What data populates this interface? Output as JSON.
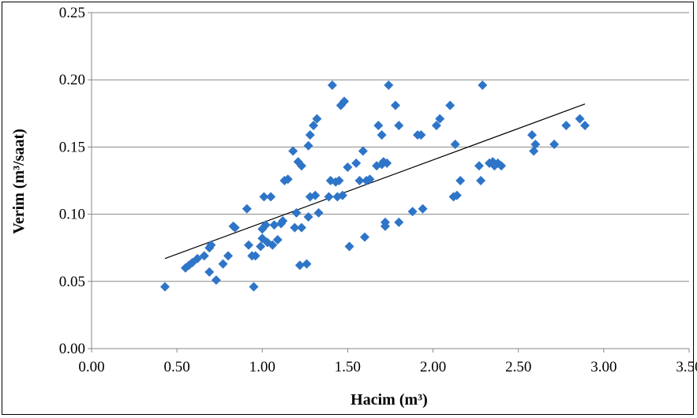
{
  "chart_data": {
    "type": "scatter",
    "title": "",
    "xlabel": "Hacim (m³)",
    "ylabel": "Verim (m³/saat)",
    "xlim": [
      0.0,
      3.5
    ],
    "ylim": [
      0.0,
      0.25
    ],
    "x_ticks": [
      "0.00",
      "0.50",
      "1.00",
      "1.50",
      "2.00",
      "2.50",
      "3.00",
      "3.50"
    ],
    "y_ticks": [
      "0.00",
      "0.05",
      "0.10",
      "0.15",
      "0.20",
      "0.25"
    ],
    "x_tick_values": [
      0,
      0.5,
      1.0,
      1.5,
      2.0,
      2.5,
      3.0,
      3.5
    ],
    "y_tick_values": [
      0,
      0.05,
      0.1,
      0.15,
      0.2,
      0.25
    ],
    "grid": "horizontal",
    "marker_color": "#2E75C8",
    "trendline": {
      "x": [
        0.43,
        2.89
      ],
      "y": [
        0.067,
        0.182
      ],
      "color": "#000000"
    },
    "points": [
      [
        0.43,
        0.046
      ],
      [
        0.55,
        0.06
      ],
      [
        0.57,
        0.062
      ],
      [
        0.59,
        0.064
      ],
      [
        0.62,
        0.067
      ],
      [
        0.66,
        0.069
      ],
      [
        0.69,
        0.075
      ],
      [
        0.7,
        0.077
      ],
      [
        0.69,
        0.057
      ],
      [
        0.73,
        0.051
      ],
      [
        0.77,
        0.063
      ],
      [
        0.8,
        0.069
      ],
      [
        0.83,
        0.091
      ],
      [
        0.84,
        0.09
      ],
      [
        0.91,
        0.104
      ],
      [
        0.92,
        0.077
      ],
      [
        0.94,
        0.069
      ],
      [
        0.95,
        0.046
      ],
      [
        0.96,
        0.069
      ],
      [
        0.99,
        0.076
      ],
      [
        1.0,
        0.082
      ],
      [
        1.0,
        0.089
      ],
      [
        1.01,
        0.113
      ],
      [
        1.02,
        0.092
      ],
      [
        1.03,
        0.079
      ],
      [
        1.05,
        0.113
      ],
      [
        1.06,
        0.077
      ],
      [
        1.07,
        0.092
      ],
      [
        1.09,
        0.081
      ],
      [
        1.11,
        0.093
      ],
      [
        1.12,
        0.095
      ],
      [
        1.13,
        0.125
      ],
      [
        1.15,
        0.126
      ],
      [
        1.18,
        0.147
      ],
      [
        1.19,
        0.09
      ],
      [
        1.2,
        0.101
      ],
      [
        1.21,
        0.139
      ],
      [
        1.22,
        0.062
      ],
      [
        1.23,
        0.09
      ],
      [
        1.23,
        0.136
      ],
      [
        1.26,
        0.063
      ],
      [
        1.27,
        0.151
      ],
      [
        1.27,
        0.098
      ],
      [
        1.28,
        0.113
      ],
      [
        1.28,
        0.159
      ],
      [
        1.3,
        0.166
      ],
      [
        1.31,
        0.114
      ],
      [
        1.32,
        0.171
      ],
      [
        1.33,
        0.101
      ],
      [
        1.39,
        0.113
      ],
      [
        1.4,
        0.125
      ],
      [
        1.41,
        0.196
      ],
      [
        1.43,
        0.124
      ],
      [
        1.44,
        0.113
      ],
      [
        1.45,
        0.125
      ],
      [
        1.46,
        0.181
      ],
      [
        1.47,
        0.114
      ],
      [
        1.48,
        0.184
      ],
      [
        1.5,
        0.135
      ],
      [
        1.51,
        0.076
      ],
      [
        1.55,
        0.138
      ],
      [
        1.57,
        0.125
      ],
      [
        1.59,
        0.147
      ],
      [
        1.6,
        0.083
      ],
      [
        1.61,
        0.125
      ],
      [
        1.63,
        0.126
      ],
      [
        1.67,
        0.136
      ],
      [
        1.68,
        0.166
      ],
      [
        1.7,
        0.159
      ],
      [
        1.7,
        0.137
      ],
      [
        1.71,
        0.139
      ],
      [
        1.72,
        0.091
      ],
      [
        1.72,
        0.094
      ],
      [
        1.73,
        0.138
      ],
      [
        1.74,
        0.196
      ],
      [
        1.78,
        0.181
      ],
      [
        1.8,
        0.166
      ],
      [
        1.8,
        0.094
      ],
      [
        1.88,
        0.102
      ],
      [
        1.91,
        0.159
      ],
      [
        1.93,
        0.159
      ],
      [
        1.94,
        0.104
      ],
      [
        2.02,
        0.166
      ],
      [
        2.04,
        0.171
      ],
      [
        2.1,
        0.181
      ],
      [
        2.12,
        0.113
      ],
      [
        2.13,
        0.152
      ],
      [
        2.14,
        0.114
      ],
      [
        2.16,
        0.125
      ],
      [
        2.27,
        0.136
      ],
      [
        2.28,
        0.125
      ],
      [
        2.29,
        0.196
      ],
      [
        2.33,
        0.138
      ],
      [
        2.35,
        0.139
      ],
      [
        2.36,
        0.136
      ],
      [
        2.38,
        0.138
      ],
      [
        2.4,
        0.136
      ],
      [
        2.58,
        0.159
      ],
      [
        2.59,
        0.147
      ],
      [
        2.6,
        0.152
      ],
      [
        2.71,
        0.152
      ],
      [
        2.78,
        0.166
      ],
      [
        2.86,
        0.171
      ],
      [
        2.89,
        0.166
      ]
    ]
  }
}
